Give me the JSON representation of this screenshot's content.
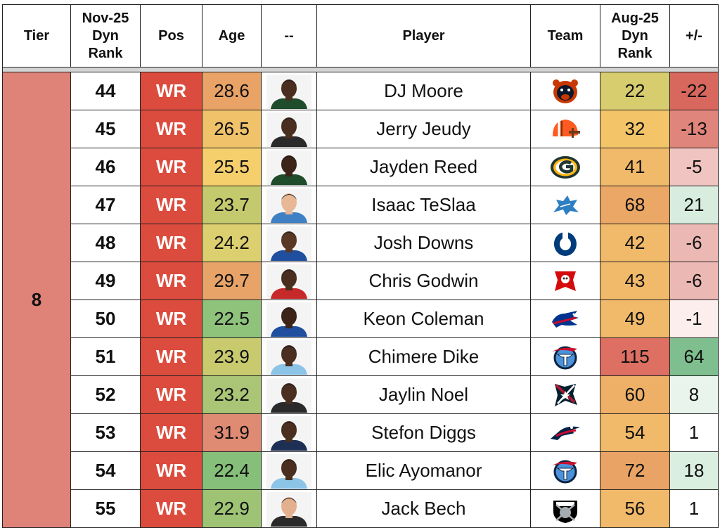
{
  "headers": {
    "tier": "Tier",
    "nov_rank": [
      "Nov-25",
      "Dyn",
      "Rank"
    ],
    "pos": "Pos",
    "age": "Age",
    "photo": "--",
    "player": "Player",
    "team": "Team",
    "aug_rank": [
      "Aug-25",
      "Dyn",
      "Rank"
    ],
    "diff": "+/-"
  },
  "tier": "8",
  "rows": [
    {
      "rank": "44",
      "pos": "WR",
      "age": "28.6",
      "player": "DJ Moore",
      "team_icon": "bears-logo",
      "aug": "22",
      "diff": "-22",
      "age_color": "#e9a366",
      "aug_color": "#d7cd6e",
      "diff_color": "#d8675d",
      "skin": "#4a2e20",
      "jersey": "#1f4d2c"
    },
    {
      "rank": "45",
      "pos": "WR",
      "age": "26.5",
      "player": "Jerry Jeudy",
      "team_icon": "browns-logo",
      "aug": "32",
      "diff": "-13",
      "age_color": "#f0c26a",
      "aug_color": "#f3c468",
      "diff_color": "#e0857c",
      "skin": "#4a2e20",
      "jersey": "#2a2a2a"
    },
    {
      "rank": "46",
      "pos": "WR",
      "age": "25.5",
      "player": "Jayden Reed",
      "team_icon": "packers-logo",
      "aug": "41",
      "diff": "-5",
      "age_color": "#f6cf6d",
      "aug_color": "#f1b96a",
      "diff_color": "#f0c4c0",
      "skin": "#3c2419",
      "jersey": "#1f4d2c"
    },
    {
      "rank": "47",
      "pos": "WR",
      "age": "23.7",
      "player": "Isaac TeSlaa",
      "team_icon": "lions-logo",
      "aug": "68",
      "diff": "21",
      "age_color": "#c5c96e",
      "aug_color": "#eaa765",
      "diff_color": "#d8eddd",
      "skin": "#e8b896",
      "jersey": "#3f7fc4"
    },
    {
      "rank": "48",
      "pos": "WR",
      "age": "24.2",
      "player": "Josh Downs",
      "team_icon": "colts-logo",
      "aug": "42",
      "diff": "-6",
      "age_color": "#dccf6f",
      "aug_color": "#f1b96a",
      "diff_color": "#ecb8b3",
      "skin": "#5a3826",
      "jersey": "#1f4f9e"
    },
    {
      "rank": "49",
      "pos": "WR",
      "age": "29.7",
      "player": "Chris Godwin",
      "team_icon": "buccaneers-logo",
      "aug": "43",
      "diff": "-6",
      "age_color": "#e8a468",
      "aug_color": "#f1b96a",
      "diff_color": "#ecb8b3",
      "skin": "#4a2e20",
      "jersey": "#c7292b"
    },
    {
      "rank": "50",
      "pos": "WR",
      "age": "22.5",
      "player": "Keon Coleman",
      "team_icon": "bills-logo",
      "aug": "49",
      "diff": "-1",
      "age_color": "#8fc27b",
      "aug_color": "#f1b96a",
      "diff_color": "#fbeeed",
      "skin": "#3c2419",
      "jersey": "#1f4f9e"
    },
    {
      "rank": "51",
      "pos": "WR",
      "age": "23.9",
      "player": "Chimere Dike",
      "team_icon": "titans-logo",
      "aug": "115",
      "diff": "64",
      "age_color": "#c9ca6e",
      "aug_color": "#dd6f63",
      "diff_color": "#7fbf8f",
      "skin": "#4a2e20",
      "jersey": "#8cc4e8"
    },
    {
      "rank": "52",
      "pos": "WR",
      "age": "23.2",
      "player": "Jaylin Noel",
      "team_icon": "texans-logo",
      "aug": "60",
      "diff": "8",
      "age_color": "#a9c575",
      "aug_color": "#eeb067",
      "diff_color": "#e9f5ec",
      "skin": "#4a2e20",
      "jersey": "#2a2a2a"
    },
    {
      "rank": "53",
      "pos": "WR",
      "age": "31.9",
      "player": "Stefon Diggs",
      "team_icon": "patriots-logo",
      "aug": "54",
      "diff": "1",
      "age_color": "#df8a72",
      "aug_color": "#f1b96a",
      "diff_color": "#ffffff",
      "skin": "#4a2e20",
      "jersey": "#1e2f55"
    },
    {
      "rank": "54",
      "pos": "WR",
      "age": "22.4",
      "player": "Elic Ayomanor",
      "team_icon": "titans-logo",
      "aug": "72",
      "diff": "18",
      "age_color": "#86bf79",
      "aug_color": "#e9a365",
      "diff_color": "#dbefe0",
      "skin": "#4a2e20",
      "jersey": "#8cc4e8"
    },
    {
      "rank": "55",
      "pos": "WR",
      "age": "22.9",
      "player": "Jack Bech",
      "team_icon": "raiders-logo",
      "aug": "56",
      "diff": "1",
      "age_color": "#9ec375",
      "aug_color": "#f1b96a",
      "diff_color": "#ffffff",
      "skin": "#e3b08e",
      "jersey": "#2a2a2a"
    }
  ]
}
